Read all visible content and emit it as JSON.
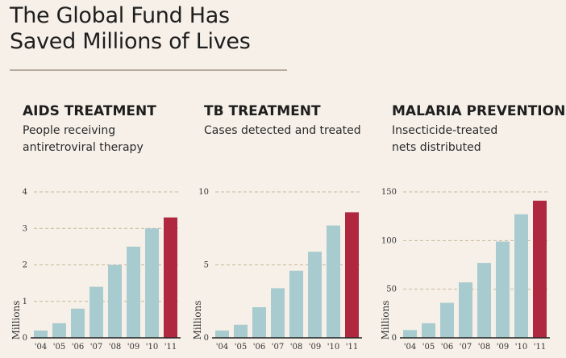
{
  "page": {
    "title_line1": "The Global Fund Has",
    "title_line2": "Saved Millions of Lives"
  },
  "colors": {
    "bar": "#a8cbcf",
    "highlight": "#b0283f",
    "grid": "#c8b89a",
    "axis": "#222222"
  },
  "chart_data": [
    {
      "type": "bar",
      "title": "AIDS TREATMENT",
      "subtitle_lines": [
        "People receiving",
        "antiretroviral therapy"
      ],
      "categories": [
        "'04",
        "'05",
        "'06",
        "'07",
        "'08",
        "'09",
        "'10",
        "'11"
      ],
      "values": [
        0.2,
        0.4,
        0.8,
        1.4,
        2.0,
        2.5,
        3.0,
        3.3
      ],
      "highlight_index": 7,
      "ylabel": "Millions",
      "ylim": [
        0,
        4
      ],
      "yticks": [
        "0",
        "1",
        "2",
        "3",
        "4"
      ],
      "ytick_values": [
        0,
        1,
        2,
        3,
        4
      ],
      "grid": true
    },
    {
      "type": "bar",
      "title": "TB TREATMENT",
      "subtitle_lines": [
        "Cases detected and treated"
      ],
      "categories": [
        "'04",
        "'05",
        "'06",
        "'07",
        "'08",
        "'09",
        "'10",
        "'11"
      ],
      "values": [
        0.5,
        0.9,
        2.1,
        3.4,
        4.6,
        5.9,
        7.7,
        8.6
      ],
      "highlight_index": 7,
      "ylabel": "Millions",
      "ylim": [
        0,
        10
      ],
      "yticks": [
        "0",
        "5",
        "10"
      ],
      "ytick_values": [
        0,
        5,
        10
      ],
      "grid": true
    },
    {
      "type": "bar",
      "title": "MALARIA PREVENTION",
      "subtitle_lines": [
        "Insecticide-treated",
        "nets distributed"
      ],
      "categories": [
        "'04",
        "'05",
        "'06",
        "'07",
        "'08",
        "'09",
        "'10",
        "'11"
      ],
      "values": [
        8,
        15,
        36,
        57,
        77,
        99,
        127,
        141
      ],
      "highlight_index": 7,
      "ylabel": "Millions",
      "ylim": [
        0,
        150
      ],
      "yticks": [
        "0",
        "50",
        "100",
        "150"
      ],
      "ytick_values": [
        0,
        50,
        100,
        150
      ],
      "grid": true
    }
  ]
}
